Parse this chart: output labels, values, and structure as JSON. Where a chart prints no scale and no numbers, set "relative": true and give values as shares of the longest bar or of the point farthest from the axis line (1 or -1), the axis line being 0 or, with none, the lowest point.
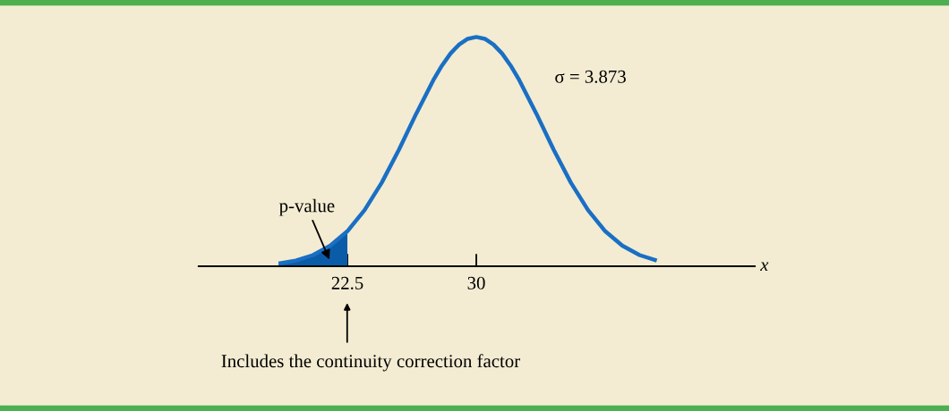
{
  "chart_data": {
    "type": "line",
    "relative": true,
    "xlabel": "x",
    "xlim": [
      13.85,
      46.2
    ],
    "xticks": [
      22.5,
      30
    ],
    "grid": false,
    "legend": false,
    "marker": "none",
    "line_style": "solid",
    "series": [
      {
        "color": "#1a6fc4",
        "x": [
          18.5,
          19.5,
          20.5,
          21.5,
          22.5,
          23.5,
          24.5,
          25.5,
          26.5,
          27.5,
          28,
          28.5,
          29,
          29.5,
          30,
          30.5,
          31,
          31.5,
          32,
          32.5,
          33.5,
          34.5,
          35.5,
          36.5,
          37.5,
          38.5,
          39.5,
          40.5
        ],
        "values": [
          0.012,
          0.025,
          0.049,
          0.09,
          0.153,
          0.245,
          0.365,
          0.509,
          0.665,
          0.812,
          0.875,
          0.928,
          0.967,
          0.992,
          1,
          0.992,
          0.967,
          0.928,
          0.875,
          0.812,
          0.665,
          0.509,
          0.365,
          0.245,
          0.153,
          0.09,
          0.049,
          0.025
        ]
      },
      {
        "type": "area",
        "color": "#0b5ca8",
        "x": [
          18.5,
          19.5,
          20.5,
          21.5,
          22.5
        ],
        "values": [
          0.012,
          0.025,
          0.049,
          0.09,
          0.153
        ]
      }
    ],
    "annotations": [
      "σ = 3.873",
      "p-value",
      "Includes the continuity correction factor"
    ]
  }
}
